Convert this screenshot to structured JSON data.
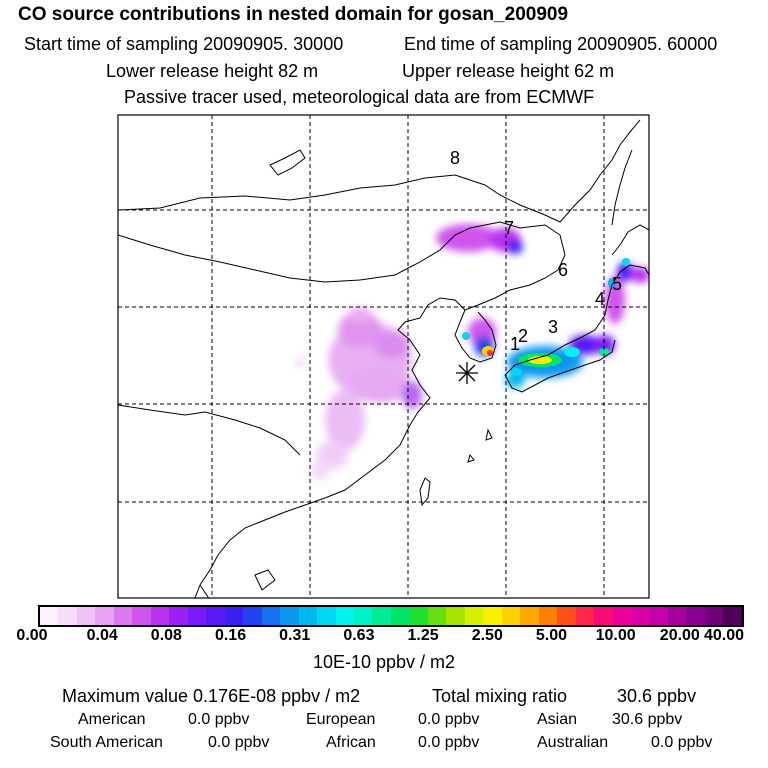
{
  "header": {
    "title": "CO  source contributions in nested domain for gosan_200909",
    "start_label": "Start time of sampling 20090905. 30000",
    "end_label": "End time of sampling 20090905. 60000",
    "lower_label": "Lower release height   82 m",
    "upper_label": "Upper release height   62 m",
    "tracer_label": "Passive tracer used, meteorological data are from ECMWF"
  },
  "map": {
    "region_labels": [
      "8",
      "7",
      "6",
      "4",
      "5",
      "3",
      "2",
      "1"
    ],
    "receptor_icon": "asterisk-receptor-icon"
  },
  "colorbar": {
    "colors": [
      "#fdf4fd",
      "#f8dcfb",
      "#f1c0f6",
      "#e9a2f2",
      "#dd7aee",
      "#cf55ee",
      "#b933f0",
      "#9b20f3",
      "#7a1af5",
      "#5a18f5",
      "#3b20f2",
      "#2244f0",
      "#1772f0",
      "#0c98ee",
      "#00b8f0",
      "#00d8f2",
      "#00f0f0",
      "#00f2c8",
      "#00eb98",
      "#00e566",
      "#20e030",
      "#66e010",
      "#a8e600",
      "#d8ee00",
      "#f8f000",
      "#ffd000",
      "#ffa800",
      "#ff8000",
      "#ff5018",
      "#ff2848",
      "#f80a78",
      "#e80098",
      "#d800a6",
      "#c400a8",
      "#a8009e",
      "#8a0090",
      "#6e0078",
      "#50005a"
    ],
    "tick_labels": [
      "0.00",
      "0.04",
      "0.08",
      "0.16",
      "0.31",
      "0.63",
      "1.25",
      "2.50",
      "5.00",
      "10.00",
      "20.00",
      "40.00"
    ],
    "unit": "10E-10 ppbv / m2"
  },
  "stats": {
    "max_label": "Maximum value  0.176E-08 ppbv / m2",
    "total_label": "Total mixing ratio",
    "total_value": "30.6 ppbv",
    "regions": [
      {
        "name": "American",
        "value": "0.0 ppbv"
      },
      {
        "name": "European",
        "value": "0.0 ppbv"
      },
      {
        "name": "Asian",
        "value": "30.6 ppbv"
      },
      {
        "name": "South American",
        "value": "0.0 ppbv"
      },
      {
        "name": "African",
        "value": "0.0 ppbv"
      },
      {
        "name": "Australian",
        "value": "0.0 ppbv"
      }
    ]
  }
}
